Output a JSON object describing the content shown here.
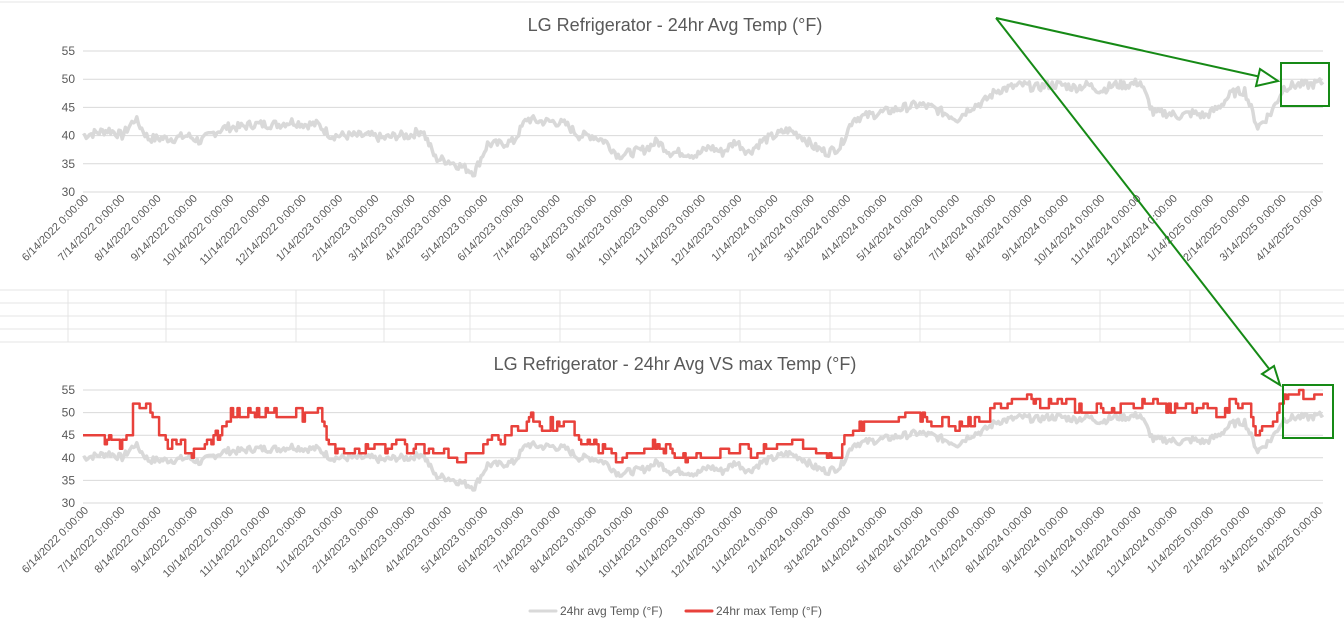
{
  "colors": {
    "avg": "#d9d9d9",
    "max": "#e8413b",
    "annotation": "#168a16",
    "grid": "#d9d9d9",
    "text": "#595959"
  },
  "x_tick_labels": [
    "6/14/2022 0:00:00",
    "7/14/2022 0:00:00",
    "8/14/2022 0:00:00",
    "9/14/2022 0:00:00",
    "10/14/2022 0:00:00",
    "11/14/2022 0:00:00",
    "12/14/2022 0:00:00",
    "1/14/2023 0:00:00",
    "2/14/2023 0:00:00",
    "3/14/2023 0:00:00",
    "4/14/2023 0:00:00",
    "5/14/2023 0:00:00",
    "6/14/2023 0:00:00",
    "7/14/2023 0:00:00",
    "8/14/2023 0:00:00",
    "9/14/2023 0:00:00",
    "10/14/2023 0:00:00",
    "11/14/2023 0:00:00",
    "12/14/2023 0:00:00",
    "1/14/2024 0:00:00",
    "2/14/2024 0:00:00",
    "3/14/2024 0:00:00",
    "4/14/2024 0:00:00",
    "5/14/2024 0:00:00",
    "6/14/2024 0:00:00",
    "7/14/2024 0:00:00",
    "8/14/2024 0:00:00",
    "9/14/2024 0:00:00",
    "10/14/2024 0:00:00",
    "11/14/2024 0:00:00",
    "12/14/2024 0:00:00",
    "1/14/2025 0:00:00",
    "2/14/2025 0:00:00",
    "3/14/2025 0:00:00",
    "4/14/2025 0:00:00"
  ],
  "chart_data": [
    {
      "type": "line",
      "title": "LG Refrigerator - 24hr Avg Temp (°F)",
      "xlabel": "",
      "ylabel": "",
      "ylim": [
        30,
        55
      ],
      "yticks": [
        30,
        35,
        40,
        45,
        50,
        55
      ],
      "grid": true,
      "legend": "none",
      "series": [
        {
          "key": "avg",
          "values": [
            40,
            40.5,
            41,
            40,
            43,
            39.5,
            39.5,
            39.5,
            40,
            39,
            40.5,
            41.5,
            41.5,
            42,
            42,
            42,
            42.5,
            42,
            42,
            40,
            40,
            40,
            40,
            39.5,
            40,
            40,
            41,
            36,
            35.5,
            34.5,
            33.5,
            38.5,
            38.5,
            39,
            43,
            42.5,
            42.5,
            42,
            40,
            40,
            39,
            36.5,
            37,
            37.5,
            39,
            37,
            37,
            36.5,
            38,
            37,
            39,
            37,
            39,
            40,
            41,
            40,
            38,
            37,
            38,
            43,
            43.5,
            44,
            44.5,
            45,
            45.5,
            45,
            44,
            43,
            45,
            46,
            48,
            48.5,
            49,
            48.5,
            49,
            49,
            48.5,
            49,
            48,
            49,
            49,
            49.5,
            44,
            44,
            43.5,
            44,
            43.5,
            45,
            47.5,
            48,
            41.5,
            44,
            48.5,
            49,
            49,
            49.5
          ]
        }
      ]
    },
    {
      "type": "line",
      "title": "LG Refrigerator - 24hr Avg VS max Temp (°F)",
      "xlabel": "",
      "ylabel": "",
      "ylim": [
        30,
        55
      ],
      "yticks": [
        30,
        35,
        40,
        45,
        50,
        55
      ],
      "grid": true,
      "legend": "bottom",
      "series": [
        {
          "key": "avg",
          "name": "24hr avg Temp (°F)",
          "values": [
            40,
            40.5,
            41,
            40,
            43,
            39.5,
            39.5,
            39.5,
            40,
            39,
            40.5,
            41.5,
            41.5,
            42,
            42,
            42,
            42.5,
            42,
            42,
            40,
            40,
            40,
            40,
            39.5,
            40,
            40,
            41,
            36,
            35.5,
            34.5,
            33.5,
            38.5,
            38.5,
            39,
            43,
            42.5,
            42.5,
            42,
            40,
            40,
            39,
            36.5,
            37,
            37.5,
            39,
            37,
            37,
            36.5,
            38,
            37,
            39,
            37,
            39,
            40,
            41,
            40,
            38,
            37,
            38,
            43,
            43.5,
            44,
            44.5,
            45,
            45.5,
            45,
            44,
            43,
            45,
            46,
            48,
            48.5,
            49,
            48.5,
            49,
            49,
            48.5,
            49,
            48,
            49,
            49,
            49.5,
            44,
            44,
            43.5,
            44,
            43.5,
            45,
            47.5,
            48,
            41.5,
            44,
            48.5,
            49,
            49,
            49.5
          ]
        },
        {
          "key": "max",
          "name": "24hr max Temp (°F)",
          "values": [
            45,
            44,
            44,
            43,
            53,
            52,
            43,
            43,
            42,
            41,
            44,
            49,
            50,
            50,
            50,
            50,
            50,
            49,
            50,
            42,
            42,
            42,
            42,
            42,
            43,
            42,
            43,
            41,
            41,
            40,
            41,
            44,
            44,
            46,
            49,
            48,
            47,
            47,
            43,
            43,
            42,
            40,
            41,
            42,
            43,
            41,
            41,
            40,
            42,
            41,
            43,
            41,
            42,
            43,
            44,
            43,
            42,
            41,
            42,
            46,
            47,
            48,
            49,
            49,
            49,
            48,
            48,
            47,
            48,
            48,
            52,
            52,
            53,
            52,
            52,
            53,
            51,
            51,
            51,
            51,
            52,
            53,
            52,
            51,
            51,
            51,
            51,
            50,
            52,
            53,
            45,
            48,
            53,
            54,
            54,
            54
          ]
        }
      ]
    }
  ]
}
